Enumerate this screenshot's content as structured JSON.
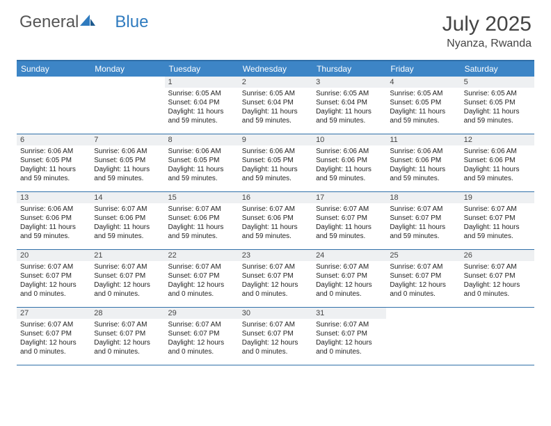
{
  "brand": {
    "part1": "General",
    "part2": "Blue"
  },
  "title": "July 2025",
  "location": "Nyanza, Rwanda",
  "colors": {
    "header_bg": "#3d85c6",
    "header_text": "#ffffff",
    "border": "#2f6fa8",
    "daynum_bg": "#eef0f2",
    "body_text": "#222222",
    "title_text": "#444444",
    "brand_gray": "#555555",
    "brand_blue": "#2f7bbf"
  },
  "weekdays": [
    "Sunday",
    "Monday",
    "Tuesday",
    "Wednesday",
    "Thursday",
    "Friday",
    "Saturday"
  ],
  "weeks": [
    [
      {
        "n": "",
        "empty": true
      },
      {
        "n": "",
        "empty": true
      },
      {
        "n": "1",
        "sunrise": "Sunrise: 6:05 AM",
        "sunset": "Sunset: 6:04 PM",
        "day1": "Daylight: 11 hours",
        "day2": "and 59 minutes."
      },
      {
        "n": "2",
        "sunrise": "Sunrise: 6:05 AM",
        "sunset": "Sunset: 6:04 PM",
        "day1": "Daylight: 11 hours",
        "day2": "and 59 minutes."
      },
      {
        "n": "3",
        "sunrise": "Sunrise: 6:05 AM",
        "sunset": "Sunset: 6:04 PM",
        "day1": "Daylight: 11 hours",
        "day2": "and 59 minutes."
      },
      {
        "n": "4",
        "sunrise": "Sunrise: 6:05 AM",
        "sunset": "Sunset: 6:05 PM",
        "day1": "Daylight: 11 hours",
        "day2": "and 59 minutes."
      },
      {
        "n": "5",
        "sunrise": "Sunrise: 6:05 AM",
        "sunset": "Sunset: 6:05 PM",
        "day1": "Daylight: 11 hours",
        "day2": "and 59 minutes."
      }
    ],
    [
      {
        "n": "6",
        "sunrise": "Sunrise: 6:06 AM",
        "sunset": "Sunset: 6:05 PM",
        "day1": "Daylight: 11 hours",
        "day2": "and 59 minutes."
      },
      {
        "n": "7",
        "sunrise": "Sunrise: 6:06 AM",
        "sunset": "Sunset: 6:05 PM",
        "day1": "Daylight: 11 hours",
        "day2": "and 59 minutes."
      },
      {
        "n": "8",
        "sunrise": "Sunrise: 6:06 AM",
        "sunset": "Sunset: 6:05 PM",
        "day1": "Daylight: 11 hours",
        "day2": "and 59 minutes."
      },
      {
        "n": "9",
        "sunrise": "Sunrise: 6:06 AM",
        "sunset": "Sunset: 6:05 PM",
        "day1": "Daylight: 11 hours",
        "day2": "and 59 minutes."
      },
      {
        "n": "10",
        "sunrise": "Sunrise: 6:06 AM",
        "sunset": "Sunset: 6:06 PM",
        "day1": "Daylight: 11 hours",
        "day2": "and 59 minutes."
      },
      {
        "n": "11",
        "sunrise": "Sunrise: 6:06 AM",
        "sunset": "Sunset: 6:06 PM",
        "day1": "Daylight: 11 hours",
        "day2": "and 59 minutes."
      },
      {
        "n": "12",
        "sunrise": "Sunrise: 6:06 AM",
        "sunset": "Sunset: 6:06 PM",
        "day1": "Daylight: 11 hours",
        "day2": "and 59 minutes."
      }
    ],
    [
      {
        "n": "13",
        "sunrise": "Sunrise: 6:06 AM",
        "sunset": "Sunset: 6:06 PM",
        "day1": "Daylight: 11 hours",
        "day2": "and 59 minutes."
      },
      {
        "n": "14",
        "sunrise": "Sunrise: 6:07 AM",
        "sunset": "Sunset: 6:06 PM",
        "day1": "Daylight: 11 hours",
        "day2": "and 59 minutes."
      },
      {
        "n": "15",
        "sunrise": "Sunrise: 6:07 AM",
        "sunset": "Sunset: 6:06 PM",
        "day1": "Daylight: 11 hours",
        "day2": "and 59 minutes."
      },
      {
        "n": "16",
        "sunrise": "Sunrise: 6:07 AM",
        "sunset": "Sunset: 6:06 PM",
        "day1": "Daylight: 11 hours",
        "day2": "and 59 minutes."
      },
      {
        "n": "17",
        "sunrise": "Sunrise: 6:07 AM",
        "sunset": "Sunset: 6:07 PM",
        "day1": "Daylight: 11 hours",
        "day2": "and 59 minutes."
      },
      {
        "n": "18",
        "sunrise": "Sunrise: 6:07 AM",
        "sunset": "Sunset: 6:07 PM",
        "day1": "Daylight: 11 hours",
        "day2": "and 59 minutes."
      },
      {
        "n": "19",
        "sunrise": "Sunrise: 6:07 AM",
        "sunset": "Sunset: 6:07 PM",
        "day1": "Daylight: 11 hours",
        "day2": "and 59 minutes."
      }
    ],
    [
      {
        "n": "20",
        "sunrise": "Sunrise: 6:07 AM",
        "sunset": "Sunset: 6:07 PM",
        "day1": "Daylight: 12 hours",
        "day2": "and 0 minutes."
      },
      {
        "n": "21",
        "sunrise": "Sunrise: 6:07 AM",
        "sunset": "Sunset: 6:07 PM",
        "day1": "Daylight: 12 hours",
        "day2": "and 0 minutes."
      },
      {
        "n": "22",
        "sunrise": "Sunrise: 6:07 AM",
        "sunset": "Sunset: 6:07 PM",
        "day1": "Daylight: 12 hours",
        "day2": "and 0 minutes."
      },
      {
        "n": "23",
        "sunrise": "Sunrise: 6:07 AM",
        "sunset": "Sunset: 6:07 PM",
        "day1": "Daylight: 12 hours",
        "day2": "and 0 minutes."
      },
      {
        "n": "24",
        "sunrise": "Sunrise: 6:07 AM",
        "sunset": "Sunset: 6:07 PM",
        "day1": "Daylight: 12 hours",
        "day2": "and 0 minutes."
      },
      {
        "n": "25",
        "sunrise": "Sunrise: 6:07 AM",
        "sunset": "Sunset: 6:07 PM",
        "day1": "Daylight: 12 hours",
        "day2": "and 0 minutes."
      },
      {
        "n": "26",
        "sunrise": "Sunrise: 6:07 AM",
        "sunset": "Sunset: 6:07 PM",
        "day1": "Daylight: 12 hours",
        "day2": "and 0 minutes."
      }
    ],
    [
      {
        "n": "27",
        "sunrise": "Sunrise: 6:07 AM",
        "sunset": "Sunset: 6:07 PM",
        "day1": "Daylight: 12 hours",
        "day2": "and 0 minutes."
      },
      {
        "n": "28",
        "sunrise": "Sunrise: 6:07 AM",
        "sunset": "Sunset: 6:07 PM",
        "day1": "Daylight: 12 hours",
        "day2": "and 0 minutes."
      },
      {
        "n": "29",
        "sunrise": "Sunrise: 6:07 AM",
        "sunset": "Sunset: 6:07 PM",
        "day1": "Daylight: 12 hours",
        "day2": "and 0 minutes."
      },
      {
        "n": "30",
        "sunrise": "Sunrise: 6:07 AM",
        "sunset": "Sunset: 6:07 PM",
        "day1": "Daylight: 12 hours",
        "day2": "and 0 minutes."
      },
      {
        "n": "31",
        "sunrise": "Sunrise: 6:07 AM",
        "sunset": "Sunset: 6:07 PM",
        "day1": "Daylight: 12 hours",
        "day2": "and 0 minutes."
      },
      {
        "n": "",
        "empty": true
      },
      {
        "n": "",
        "empty": true
      }
    ]
  ]
}
